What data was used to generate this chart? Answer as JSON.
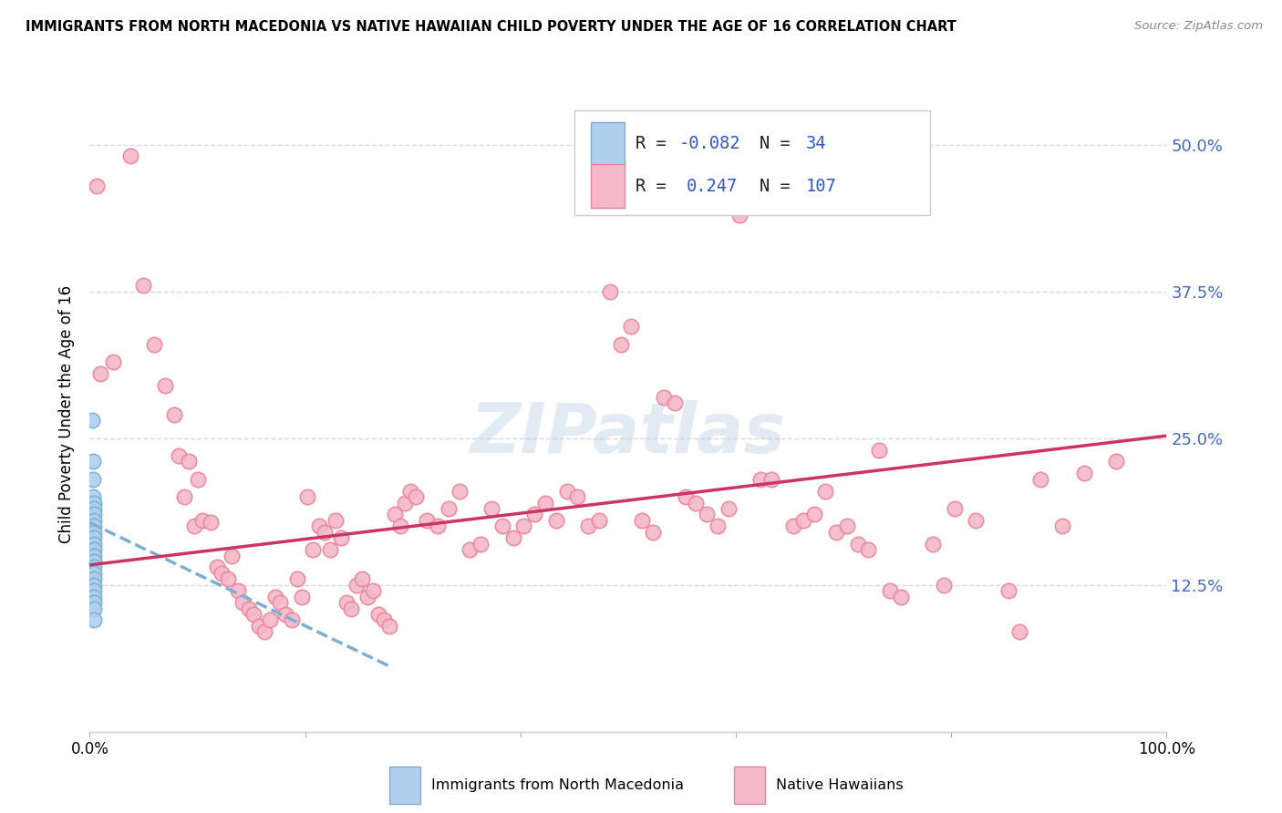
{
  "title": "IMMIGRANTS FROM NORTH MACEDONIA VS NATIVE HAWAIIAN CHILD POVERTY UNDER THE AGE OF 16 CORRELATION CHART",
  "source": "Source: ZipAtlas.com",
  "ylabel": "Child Poverty Under the Age of 16",
  "xlim": [
    0.0,
    1.0
  ],
  "ylim": [
    0.0,
    0.54
  ],
  "yticks": [
    0.125,
    0.25,
    0.375,
    0.5
  ],
  "ytick_labels": [
    "12.5%",
    "25.0%",
    "37.5%",
    "50.0%"
  ],
  "grid_color": "#d8d8e8",
  "background_color": "#ffffff",
  "watermark": "ZIPatlas",
  "legend_R1": "-0.082",
  "legend_N1": "34",
  "legend_R2": "0.247",
  "legend_N2": "107",
  "blue_color": "#7bafd4",
  "pink_color": "#e8879a",
  "blue_fill": "#aed0ee",
  "pink_fill": "#f5b8c8",
  "blue_dots": [
    [
      0.002,
      0.265
    ],
    [
      0.003,
      0.23
    ],
    [
      0.003,
      0.215
    ],
    [
      0.003,
      0.2
    ],
    [
      0.003,
      0.19
    ],
    [
      0.003,
      0.185
    ],
    [
      0.003,
      0.18
    ],
    [
      0.003,
      0.175
    ],
    [
      0.003,
      0.17
    ],
    [
      0.003,
      0.165
    ],
    [
      0.003,
      0.16
    ],
    [
      0.003,
      0.155
    ],
    [
      0.003,
      0.15
    ],
    [
      0.003,
      0.145
    ],
    [
      0.004,
      0.195
    ],
    [
      0.004,
      0.19
    ],
    [
      0.004,
      0.185
    ],
    [
      0.004,
      0.18
    ],
    [
      0.004,
      0.175
    ],
    [
      0.004,
      0.17
    ],
    [
      0.004,
      0.165
    ],
    [
      0.004,
      0.16
    ],
    [
      0.004,
      0.155
    ],
    [
      0.004,
      0.15
    ],
    [
      0.004,
      0.145
    ],
    [
      0.004,
      0.14
    ],
    [
      0.004,
      0.135
    ],
    [
      0.004,
      0.13
    ],
    [
      0.004,
      0.125
    ],
    [
      0.004,
      0.12
    ],
    [
      0.004,
      0.115
    ],
    [
      0.004,
      0.11
    ],
    [
      0.004,
      0.105
    ],
    [
      0.004,
      0.095
    ]
  ],
  "pink_dots": [
    [
      0.006,
      0.465
    ],
    [
      0.01,
      0.305
    ],
    [
      0.022,
      0.315
    ],
    [
      0.038,
      0.49
    ],
    [
      0.05,
      0.38
    ],
    [
      0.06,
      0.33
    ],
    [
      0.07,
      0.295
    ],
    [
      0.078,
      0.27
    ],
    [
      0.083,
      0.235
    ],
    [
      0.088,
      0.2
    ],
    [
      0.092,
      0.23
    ],
    [
      0.097,
      0.175
    ],
    [
      0.1,
      0.215
    ],
    [
      0.105,
      0.18
    ],
    [
      0.112,
      0.178
    ],
    [
      0.118,
      0.14
    ],
    [
      0.122,
      0.135
    ],
    [
      0.128,
      0.13
    ],
    [
      0.132,
      0.15
    ],
    [
      0.138,
      0.12
    ],
    [
      0.142,
      0.11
    ],
    [
      0.148,
      0.105
    ],
    [
      0.152,
      0.1
    ],
    [
      0.157,
      0.09
    ],
    [
      0.162,
      0.085
    ],
    [
      0.167,
      0.095
    ],
    [
      0.172,
      0.115
    ],
    [
      0.177,
      0.11
    ],
    [
      0.182,
      0.1
    ],
    [
      0.188,
      0.095
    ],
    [
      0.193,
      0.13
    ],
    [
      0.197,
      0.115
    ],
    [
      0.202,
      0.2
    ],
    [
      0.207,
      0.155
    ],
    [
      0.213,
      0.175
    ],
    [
      0.218,
      0.17
    ],
    [
      0.223,
      0.155
    ],
    [
      0.228,
      0.18
    ],
    [
      0.233,
      0.165
    ],
    [
      0.238,
      0.11
    ],
    [
      0.243,
      0.105
    ],
    [
      0.248,
      0.125
    ],
    [
      0.253,
      0.13
    ],
    [
      0.258,
      0.115
    ],
    [
      0.263,
      0.12
    ],
    [
      0.268,
      0.1
    ],
    [
      0.273,
      0.095
    ],
    [
      0.278,
      0.09
    ],
    [
      0.283,
      0.185
    ],
    [
      0.288,
      0.175
    ],
    [
      0.293,
      0.195
    ],
    [
      0.298,
      0.205
    ],
    [
      0.303,
      0.2
    ],
    [
      0.313,
      0.18
    ],
    [
      0.323,
      0.175
    ],
    [
      0.333,
      0.19
    ],
    [
      0.343,
      0.205
    ],
    [
      0.353,
      0.155
    ],
    [
      0.363,
      0.16
    ],
    [
      0.373,
      0.19
    ],
    [
      0.383,
      0.175
    ],
    [
      0.393,
      0.165
    ],
    [
      0.403,
      0.175
    ],
    [
      0.413,
      0.185
    ],
    [
      0.423,
      0.195
    ],
    [
      0.433,
      0.18
    ],
    [
      0.443,
      0.205
    ],
    [
      0.453,
      0.2
    ],
    [
      0.463,
      0.175
    ],
    [
      0.473,
      0.18
    ],
    [
      0.483,
      0.375
    ],
    [
      0.493,
      0.33
    ],
    [
      0.503,
      0.345
    ],
    [
      0.513,
      0.18
    ],
    [
      0.523,
      0.17
    ],
    [
      0.533,
      0.285
    ],
    [
      0.543,
      0.28
    ],
    [
      0.553,
      0.2
    ],
    [
      0.563,
      0.195
    ],
    [
      0.573,
      0.185
    ],
    [
      0.583,
      0.175
    ],
    [
      0.593,
      0.19
    ],
    [
      0.603,
      0.44
    ],
    [
      0.623,
      0.215
    ],
    [
      0.633,
      0.215
    ],
    [
      0.653,
      0.175
    ],
    [
      0.663,
      0.18
    ],
    [
      0.673,
      0.185
    ],
    [
      0.683,
      0.205
    ],
    [
      0.693,
      0.17
    ],
    [
      0.703,
      0.175
    ],
    [
      0.713,
      0.16
    ],
    [
      0.723,
      0.155
    ],
    [
      0.733,
      0.24
    ],
    [
      0.743,
      0.12
    ],
    [
      0.753,
      0.115
    ],
    [
      0.783,
      0.16
    ],
    [
      0.793,
      0.125
    ],
    [
      0.803,
      0.19
    ],
    [
      0.823,
      0.18
    ],
    [
      0.853,
      0.12
    ],
    [
      0.863,
      0.085
    ],
    [
      0.883,
      0.215
    ],
    [
      0.903,
      0.175
    ],
    [
      0.923,
      0.22
    ],
    [
      0.953,
      0.23
    ]
  ],
  "blue_line_x": [
    0.0,
    0.28
  ],
  "blue_line_y": [
    0.178,
    0.055
  ],
  "pink_line_x": [
    0.0,
    1.0
  ],
  "pink_line_y": [
    0.142,
    0.252
  ]
}
